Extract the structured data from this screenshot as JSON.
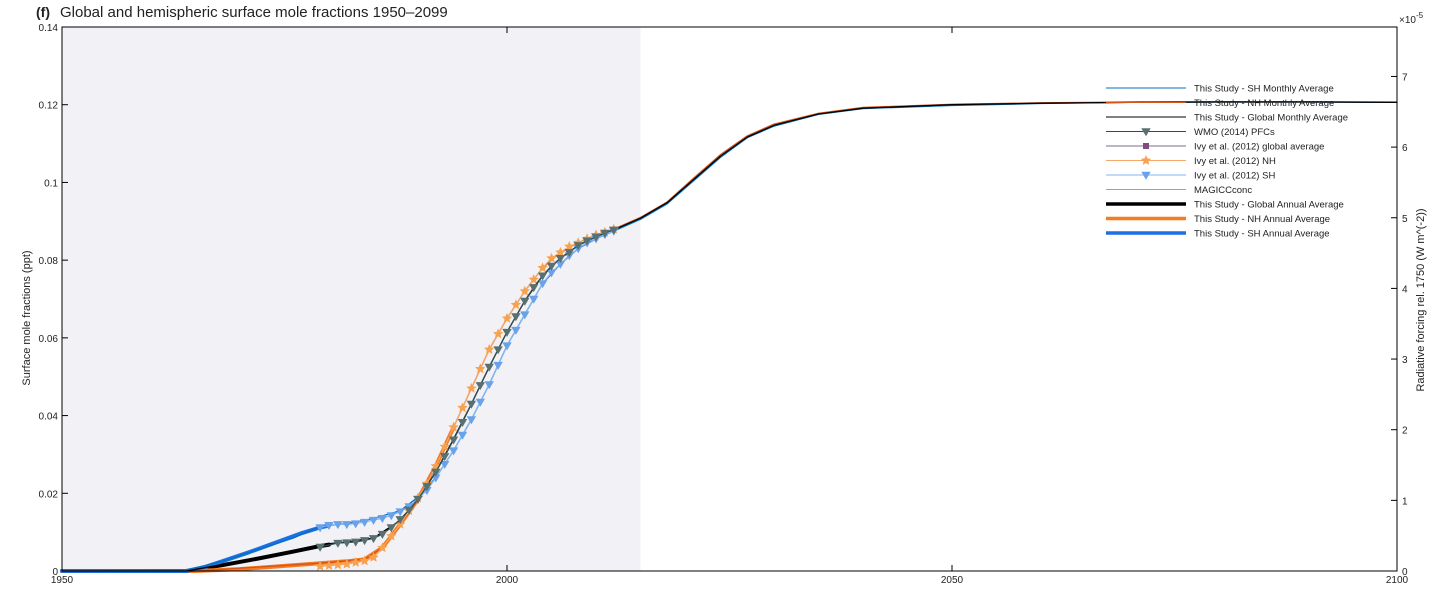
{
  "chart_data": {
    "type": "line",
    "panel_label": "(f)",
    "title": "Global and hemispheric surface mole fractions 1950–2099",
    "ylabel": "Surface mole fractions (ppt)",
    "y2label": "Radiative forcing rel. 1750 (W m^(-2))",
    "y2_multiplier": "×10",
    "y2_exponent": "-5",
    "xlim": [
      1950,
      2100
    ],
    "ylim": [
      0,
      0.14
    ],
    "y2lim": [
      0,
      7.7
    ],
    "x_ticks": [
      1950,
      2000,
      2050,
      2100
    ],
    "x_tick_labels": [
      "1950",
      "2000",
      "2050",
      "2100"
    ],
    "y_ticks": [
      0,
      0.02,
      0.04,
      0.06,
      0.08,
      0.1,
      0.12,
      0.14
    ],
    "y_tick_labels": [
      "0",
      "0.02",
      "0.04",
      "0.06",
      "0.08",
      "0.1",
      "0.12",
      "0.14"
    ],
    "y2_ticks": [
      0,
      1,
      2,
      3,
      4,
      5,
      6,
      7
    ],
    "y2_tick_labels": [
      "0",
      "1",
      "2",
      "3",
      "4",
      "5",
      "6",
      "7"
    ],
    "shaded_region": {
      "x": [
        1950,
        2015
      ],
      "color": "#f1f1f6"
    },
    "legend_position": "top-right",
    "series": [
      {
        "name": "This Study - SH Monthly Average",
        "color": "#0072bd",
        "style": "thin",
        "x": [
          1950,
          1964,
          1968,
          1972,
          1976,
          1979,
          1982,
          1985,
          1988,
          1990,
          1992,
          1994,
          1996,
          1998,
          2000,
          2002,
          2004,
          2006,
          2008,
          2010,
          2012,
          2015,
          2018,
          2021,
          2024,
          2027,
          2030,
          2035,
          2040,
          2050,
          2060,
          2070,
          2080,
          2090,
          2100
        ],
        "y": [
          0.0,
          0.0002,
          0.0025,
          0.0055,
          0.0085,
          0.0115,
          0.0122,
          0.0135,
          0.0155,
          0.019,
          0.024,
          0.031,
          0.039,
          0.048,
          0.058,
          0.066,
          0.074,
          0.079,
          0.083,
          0.0855,
          0.0875,
          0.0905,
          0.0945,
          0.1005,
          0.1065,
          0.1115,
          0.1145,
          0.1175,
          0.119,
          0.1198,
          0.1203,
          0.1206,
          0.1207,
          0.1207,
          0.1206
        ]
      },
      {
        "name": "This Study - NH Monthly Average",
        "color": "#d95319",
        "style": "thin",
        "x": [
          1950,
          1965,
          1972,
          1979,
          1984,
          1986,
          1988,
          1990,
          1992,
          1994,
          1996,
          1998,
          2000,
          2002,
          2004,
          2006,
          2008,
          2010,
          2012,
          2015,
          2018,
          2021,
          2024,
          2027,
          2030,
          2035,
          2040,
          2050,
          2060,
          2070,
          2080,
          2090,
          2100
        ],
        "y": [
          0.0,
          0.0,
          0.001,
          0.002,
          0.003,
          0.006,
          0.012,
          0.0185,
          0.027,
          0.037,
          0.047,
          0.057,
          0.065,
          0.072,
          0.078,
          0.082,
          0.0845,
          0.0865,
          0.088,
          0.091,
          0.095,
          0.1012,
          0.1072,
          0.112,
          0.115,
          0.1178,
          0.1193,
          0.1201,
          0.1205,
          0.1207,
          0.1208,
          0.1208,
          0.1207
        ]
      },
      {
        "name": "This Study - Global Monthly Average",
        "color": "#000000",
        "style": "thin",
        "x": [
          1950,
          1964,
          1970,
          1975,
          1979,
          1982,
          1985,
          1988,
          1990,
          1992,
          1994,
          1996,
          1998,
          2000,
          2002,
          2004,
          2006,
          2008,
          2010,
          2012,
          2015,
          2018,
          2021,
          2024,
          2027,
          2030,
          2035,
          2040,
          2050,
          2060,
          2070,
          2080,
          2090,
          2100
        ],
        "y": [
          0.0,
          0.0,
          0.0025,
          0.0048,
          0.0068,
          0.0075,
          0.0085,
          0.013,
          0.0185,
          0.0255,
          0.034,
          0.043,
          0.0525,
          0.0615,
          0.0695,
          0.076,
          0.0805,
          0.0838,
          0.086,
          0.0878,
          0.0908,
          0.0948,
          0.1008,
          0.1068,
          0.1117,
          0.1147,
          0.1176,
          0.1191,
          0.12,
          0.1204,
          0.1206,
          0.1207,
          0.1207,
          0.1206
        ]
      },
      {
        "name": "WMO (2014) PFCs",
        "color": "#2f4f4f",
        "marker": "triangle-down",
        "marker_color": "#5a7070",
        "x": [
          1979,
          1981,
          1982,
          1983,
          1984,
          1985,
          1986,
          1987,
          1988,
          1989,
          1990,
          1991,
          1992,
          1993,
          1994,
          1995,
          1996,
          1997,
          1998,
          1999,
          2000,
          2001,
          2002,
          2003,
          2004,
          2005,
          2006,
          2007,
          2008,
          2009,
          2010,
          2011,
          2012
        ],
        "y": [
          0.0062,
          0.0072,
          0.0073,
          0.0075,
          0.0079,
          0.0084,
          0.0095,
          0.0112,
          0.0133,
          0.0157,
          0.0185,
          0.0218,
          0.0255,
          0.0295,
          0.0338,
          0.0383,
          0.043,
          0.0478,
          0.0525,
          0.057,
          0.0615,
          0.0655,
          0.0695,
          0.073,
          0.076,
          0.0785,
          0.0805,
          0.082,
          0.0838,
          0.085,
          0.086,
          0.087,
          0.0878
        ]
      },
      {
        "name": "Ivy  et al. (2012) global average",
        "color": "#7e6e86",
        "marker": "square",
        "marker_color": "#7e4e7e",
        "x": [],
        "y": []
      },
      {
        "name": "Ivy  et al. (2012) NH",
        "color": "#f5a868",
        "marker": "star",
        "marker_color": "#f7a24e",
        "x": [
          1979,
          1980,
          1981,
          1982,
          1983,
          1984,
          1985,
          1986,
          1987,
          1988,
          1989,
          1990,
          1991,
          1992,
          1993,
          1994,
          1995,
          1996,
          1997,
          1998,
          1999,
          2000,
          2001,
          2002,
          2003,
          2004,
          2005,
          2006,
          2007,
          2008,
          2009,
          2010,
          2011,
          2012
        ],
        "y": [
          0.0012,
          0.0014,
          0.0016,
          0.0018,
          0.0022,
          0.0026,
          0.0035,
          0.006,
          0.009,
          0.012,
          0.0155,
          0.0188,
          0.0225,
          0.027,
          0.032,
          0.037,
          0.042,
          0.047,
          0.052,
          0.057,
          0.061,
          0.065,
          0.0685,
          0.072,
          0.075,
          0.078,
          0.0805,
          0.082,
          0.0835,
          0.0845,
          0.0855,
          0.0865,
          0.0872,
          0.088
        ]
      },
      {
        "name": "Ivy  et al. (2012) SH",
        "color": "#86b6f2",
        "marker": "triangle-down",
        "marker_color": "#6aa2ea",
        "x": [
          1979,
          1980,
          1981,
          1982,
          1983,
          1984,
          1985,
          1986,
          1987,
          1988,
          1989,
          1990,
          1991,
          1992,
          1993,
          1994,
          1995,
          1996,
          1997,
          1998,
          1999,
          2000,
          2001,
          2002,
          2003,
          2004,
          2005,
          2006,
          2007,
          2008,
          2009,
          2010,
          2011,
          2012
        ],
        "y": [
          0.0112,
          0.0118,
          0.012,
          0.012,
          0.0122,
          0.0126,
          0.0131,
          0.0136,
          0.0143,
          0.0153,
          0.0166,
          0.0185,
          0.0208,
          0.024,
          0.0275,
          0.031,
          0.035,
          0.039,
          0.0435,
          0.048,
          0.053,
          0.058,
          0.062,
          0.066,
          0.07,
          0.074,
          0.0768,
          0.079,
          0.0812,
          0.083,
          0.0845,
          0.0855,
          0.0866,
          0.0875
        ]
      },
      {
        "name": "MAGICCconc",
        "color": "#4dbeee",
        "style": "thin",
        "x": [],
        "y": []
      },
      {
        "name": "This Study - Global Annual Average",
        "color": "#000000",
        "style": "thick",
        "x": [
          1950,
          1964,
          1968,
          1972,
          1976,
          1979,
          1980
        ],
        "y": [
          0.0,
          0.0,
          0.0015,
          0.0032,
          0.005,
          0.0064,
          0.0068
        ]
      },
      {
        "name": "This Study - NH Annual Average",
        "color": "#f57a20",
        "style": "thick",
        "x": [
          1950,
          1965,
          1970,
          1975,
          1979,
          1982,
          1984,
          1986,
          1988,
          1990,
          1992,
          1994
        ],
        "y": [
          0.0,
          0.0,
          0.0005,
          0.0013,
          0.002,
          0.0025,
          0.003,
          0.006,
          0.012,
          0.0185,
          0.027,
          0.037
        ]
      },
      {
        "name": "This Study - SH Annual Average",
        "color": "#1e6fe6",
        "style": "thick",
        "x": [
          1950,
          1964,
          1966,
          1968,
          1971,
          1974,
          1977,
          1979,
          1980
        ],
        "y": [
          0.0,
          0.0,
          0.001,
          0.0025,
          0.0048,
          0.0073,
          0.0098,
          0.0112,
          0.0117
        ]
      }
    ]
  }
}
